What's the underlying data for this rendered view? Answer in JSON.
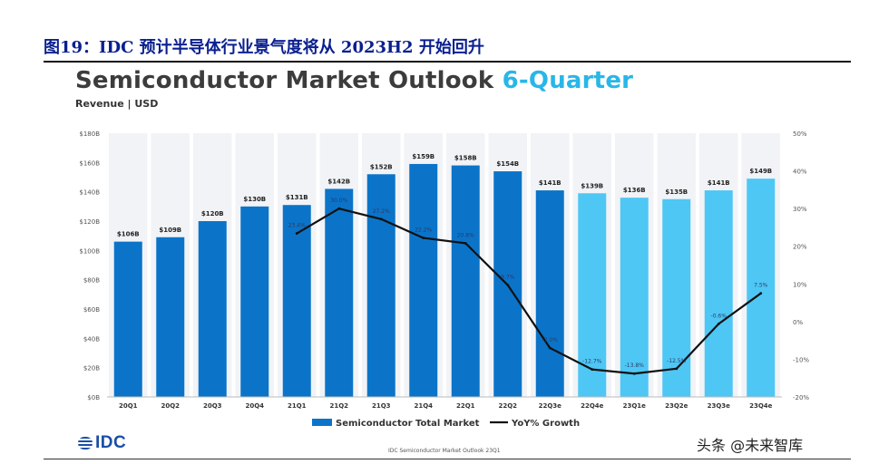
{
  "caption": "图19：IDC 预计半导体行业景气度将从 2023H2 开始回升",
  "title": {
    "main": "Semiconductor Market Outlook ",
    "accent": "6-Quarter"
  },
  "subtitle": "Revenue | USD",
  "source": "IDC Semiconductor Market Outlook 23Q1",
  "logo_text": "IDC",
  "watermark": "头条 @未来智库",
  "colors": {
    "actual_bar": "#0b74c9",
    "forecast_bar": "#4ec7f5",
    "line": "#111111",
    "caption": "#0a1f8f",
    "accent": "#29b6e8"
  },
  "chart_data": {
    "type": "bar",
    "categories": [
      "20Q1",
      "20Q2",
      "20Q3",
      "20Q4",
      "21Q1",
      "21Q2",
      "21Q3",
      "21Q4",
      "22Q1",
      "22Q2",
      "22Q3e",
      "22Q4e",
      "23Q1e",
      "23Q2e",
      "23Q3e",
      "23Q4e"
    ],
    "series": [
      {
        "name": "Semiconductor Total Market",
        "axis": "left",
        "values": [
          106,
          109,
          120,
          130,
          131,
          142,
          152,
          159,
          158,
          154,
          141,
          139,
          136,
          135,
          141,
          149
        ],
        "labels": [
          "$106B",
          "$109B",
          "$120B",
          "$130B",
          "$131B",
          "$142B",
          "$152B",
          "$159B",
          "$158B",
          "$154B",
          "$141B",
          "$139B",
          "$136B",
          "$135B",
          "$141B",
          "$149B"
        ],
        "forecast_from_index": 11
      },
      {
        "name": "YoY% Growth",
        "type": "line",
        "axis": "right",
        "values": [
          null,
          null,
          null,
          null,
          23.4,
          30.0,
          27.2,
          22.2,
          20.8,
          9.7,
          -7.0,
          -12.7,
          -13.8,
          -12.5,
          -0.6,
          7.5
        ],
        "labels": [
          "",
          "",
          "",
          "",
          "23.4%",
          "30.0%",
          "27.2%",
          "22.2%",
          "20.8%",
          "9.7%",
          "-7.0%",
          "-12.7%",
          "-13.8%",
          "-12.5%",
          "-0.6%",
          "7.5%"
        ]
      }
    ],
    "y_left": {
      "ylim": [
        0,
        180
      ],
      "ticks": [
        "$0B",
        "$20B",
        "$40B",
        "$60B",
        "$80B",
        "$100B",
        "$120B",
        "$140B",
        "$160B",
        "$180B"
      ]
    },
    "y_right": {
      "ylim": [
        -20,
        50
      ],
      "ticks": [
        "-20%",
        "-10%",
        "0%",
        "10%",
        "20%",
        "30%",
        "40%",
        "50%"
      ]
    },
    "grid": false,
    "legend_position": "bottom"
  }
}
